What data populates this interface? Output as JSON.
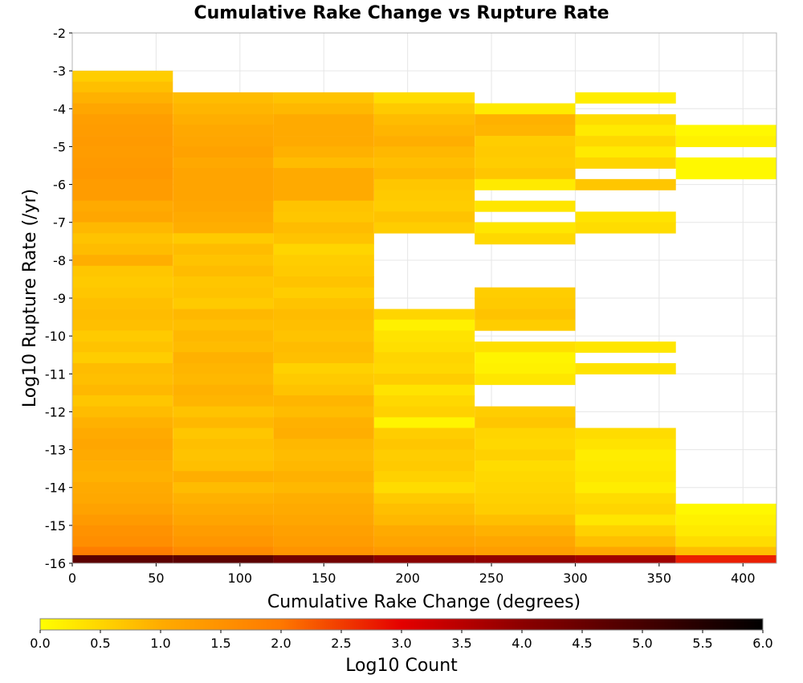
{
  "chart_data": {
    "type": "heatmap",
    "title": "Cumulative Rake Change vs Rupture Rate",
    "xlabel": "Cumulative Rake Change (degrees)",
    "ylabel": "Log10 Rupture Rate (/yr)",
    "xlim": [
      0,
      420
    ],
    "ylim": [
      -16,
      -2
    ],
    "xticks": [
      0,
      50,
      100,
      150,
      200,
      250,
      300,
      350,
      400
    ],
    "yticks": [
      -2,
      -3,
      -4,
      -5,
      -6,
      -7,
      -8,
      -9,
      -10,
      -11,
      -12,
      -13,
      -14,
      -15,
      -16
    ],
    "x_bin_width": 60,
    "y_bin_height": 0.286,
    "grid": true,
    "colorbar": {
      "label": "Log10 Count",
      "range": [
        0.0,
        6.0
      ],
      "ticks": [
        "0.0",
        "0.5",
        "1.0",
        "1.5",
        "2.0",
        "2.5",
        "3.0",
        "3.5",
        "4.0",
        "4.5",
        "5.0",
        "5.5",
        "6.0"
      ],
      "placement": "bottom",
      "colors": [
        "#ffff00",
        "#ffaa00",
        "#ff7a00",
        "#e40000",
        "#8a0000",
        "#000000"
      ]
    },
    "columns": [
      {
        "x_start": 0,
        "rows": [
          {
            "y": -3.14,
            "z": 0.7
          },
          {
            "y": -3.43,
            "z": 0.9
          },
          {
            "y": -3.71,
            "z": 1.1
          },
          {
            "y": -4.0,
            "z": 1.3
          },
          {
            "y": -4.29,
            "z": 1.5
          },
          {
            "y": -4.57,
            "z": 1.55
          },
          {
            "y": -4.86,
            "z": 1.6
          },
          {
            "y": -5.14,
            "z": 1.55
          },
          {
            "y": -5.43,
            "z": 1.6
          },
          {
            "y": -5.71,
            "z": 1.65
          },
          {
            "y": -6.0,
            "z": 1.55
          },
          {
            "y": -6.29,
            "z": 1.55
          },
          {
            "y": -6.57,
            "z": 1.2
          },
          {
            "y": -6.86,
            "z": 1.3
          },
          {
            "y": -7.14,
            "z": 1.0
          },
          {
            "y": -7.43,
            "z": 0.85
          },
          {
            "y": -7.71,
            "z": 0.95
          },
          {
            "y": -8.0,
            "z": 1.15
          },
          {
            "y": -8.29,
            "z": 0.8
          },
          {
            "y": -8.57,
            "z": 0.75
          },
          {
            "y": -8.86,
            "z": 0.8
          },
          {
            "y": -9.14,
            "z": 0.9
          },
          {
            "y": -9.43,
            "z": 0.95
          },
          {
            "y": -9.71,
            "z": 0.9
          },
          {
            "y": -10.0,
            "z": 0.75
          },
          {
            "y": -10.29,
            "z": 0.85
          },
          {
            "y": -10.57,
            "z": 0.7
          },
          {
            "y": -10.86,
            "z": 0.95
          },
          {
            "y": -11.14,
            "z": 0.9
          },
          {
            "y": -11.43,
            "z": 1.0
          },
          {
            "y": -11.71,
            "z": 0.8
          },
          {
            "y": -12.0,
            "z": 0.95
          },
          {
            "y": -12.29,
            "z": 1.1
          },
          {
            "y": -12.57,
            "z": 1.2
          },
          {
            "y": -12.86,
            "z": 1.3
          },
          {
            "y": -13.14,
            "z": 1.2
          },
          {
            "y": -13.43,
            "z": 1.15
          },
          {
            "y": -13.71,
            "z": 1.1
          },
          {
            "y": -14.0,
            "z": 1.2
          },
          {
            "y": -14.29,
            "z": 1.25
          },
          {
            "y": -14.57,
            "z": 1.4
          },
          {
            "y": -14.86,
            "z": 1.6
          },
          {
            "y": -15.14,
            "z": 1.8
          },
          {
            "y": -15.43,
            "z": 1.9
          },
          {
            "y": -15.71,
            "z": 2.3
          },
          {
            "y": -15.93,
            "z": 5.2
          }
        ]
      },
      {
        "x_start": 60,
        "rows": [
          {
            "y": -3.71,
            "z": 0.95
          },
          {
            "y": -4.0,
            "z": 1.05
          },
          {
            "y": -4.29,
            "z": 1.15
          },
          {
            "y": -4.57,
            "z": 1.25
          },
          {
            "y": -4.86,
            "z": 1.3
          },
          {
            "y": -5.14,
            "z": 1.4
          },
          {
            "y": -5.43,
            "z": 1.25
          },
          {
            "y": -5.71,
            "z": 1.35
          },
          {
            "y": -6.0,
            "z": 1.35
          },
          {
            "y": -6.29,
            "z": 1.35
          },
          {
            "y": -6.57,
            "z": 1.3
          },
          {
            "y": -6.86,
            "z": 1.2
          },
          {
            "y": -7.14,
            "z": 1.15
          },
          {
            "y": -7.43,
            "z": 0.75
          },
          {
            "y": -7.71,
            "z": 0.95
          },
          {
            "y": -8.0,
            "z": 0.85
          },
          {
            "y": -8.29,
            "z": 0.95
          },
          {
            "y": -8.57,
            "z": 0.8
          },
          {
            "y": -8.86,
            "z": 0.85
          },
          {
            "y": -9.14,
            "z": 0.75
          },
          {
            "y": -9.43,
            "z": 1.0
          },
          {
            "y": -9.71,
            "z": 0.9
          },
          {
            "y": -10.0,
            "z": 1.0
          },
          {
            "y": -10.29,
            "z": 0.95
          },
          {
            "y": -10.57,
            "z": 1.1
          },
          {
            "y": -10.86,
            "z": 1.05
          },
          {
            "y": -11.14,
            "z": 1.0
          },
          {
            "y": -11.43,
            "z": 1.1
          },
          {
            "y": -11.71,
            "z": 1.05
          },
          {
            "y": -12.0,
            "z": 0.85
          },
          {
            "y": -12.29,
            "z": 1.0
          },
          {
            "y": -12.57,
            "z": 0.8
          },
          {
            "y": -12.86,
            "z": 0.9
          },
          {
            "y": -13.14,
            "z": 0.85
          },
          {
            "y": -13.43,
            "z": 0.9
          },
          {
            "y": -13.71,
            "z": 1.15
          },
          {
            "y": -14.0,
            "z": 0.95
          },
          {
            "y": -14.29,
            "z": 1.1
          },
          {
            "y": -14.57,
            "z": 1.2
          },
          {
            "y": -14.86,
            "z": 1.35
          },
          {
            "y": -15.14,
            "z": 1.55
          },
          {
            "y": -15.43,
            "z": 1.7
          },
          {
            "y": -15.71,
            "z": 2.0
          },
          {
            "y": -15.93,
            "z": 5.2
          }
        ]
      },
      {
        "x_start": 120,
        "rows": [
          {
            "y": -3.71,
            "z": 0.85
          },
          {
            "y": -4.0,
            "z": 1.0
          },
          {
            "y": -4.29,
            "z": 1.2
          },
          {
            "y": -4.57,
            "z": 1.2
          },
          {
            "y": -4.86,
            "z": 1.2
          },
          {
            "y": -5.14,
            "z": 1.1
          },
          {
            "y": -5.43,
            "z": 0.95
          },
          {
            "y": -5.71,
            "z": 1.2
          },
          {
            "y": -6.0,
            "z": 1.2
          },
          {
            "y": -6.29,
            "z": 1.2
          },
          {
            "y": -6.57,
            "z": 0.85
          },
          {
            "y": -6.86,
            "z": 0.8
          },
          {
            "y": -7.14,
            "z": 0.95
          },
          {
            "y": -7.43,
            "z": 0.85
          },
          {
            "y": -7.71,
            "z": 0.6
          },
          {
            "y": -8.0,
            "z": 0.7
          },
          {
            "y": -8.29,
            "z": 0.75
          },
          {
            "y": -8.57,
            "z": 0.85
          },
          {
            "y": -8.86,
            "z": 0.7
          },
          {
            "y": -9.14,
            "z": 0.85
          },
          {
            "y": -9.43,
            "z": 0.95
          },
          {
            "y": -9.71,
            "z": 0.9
          },
          {
            "y": -10.0,
            "z": 0.85
          },
          {
            "y": -10.29,
            "z": 0.95
          },
          {
            "y": -10.57,
            "z": 0.9
          },
          {
            "y": -10.86,
            "z": 0.65
          },
          {
            "y": -11.14,
            "z": 0.75
          },
          {
            "y": -11.43,
            "z": 0.85
          },
          {
            "y": -11.71,
            "z": 1.05
          },
          {
            "y": -12.0,
            "z": 0.95
          },
          {
            "y": -12.29,
            "z": 1.1
          },
          {
            "y": -12.57,
            "z": 1.15
          },
          {
            "y": -12.86,
            "z": 1.0
          },
          {
            "y": -13.14,
            "z": 0.95
          },
          {
            "y": -13.43,
            "z": 1.0
          },
          {
            "y": -13.71,
            "z": 1.1
          },
          {
            "y": -14.0,
            "z": 1.0
          },
          {
            "y": -14.29,
            "z": 1.15
          },
          {
            "y": -14.57,
            "z": 1.2
          },
          {
            "y": -14.86,
            "z": 1.3
          },
          {
            "y": -15.14,
            "z": 1.45
          },
          {
            "y": -15.43,
            "z": 1.55
          },
          {
            "y": -15.71,
            "z": 1.75
          },
          {
            "y": -15.93,
            "z": 5.0
          }
        ]
      },
      {
        "x_start": 180,
        "rows": [
          {
            "y": -3.71,
            "z": 0.5
          },
          {
            "y": -4.0,
            "z": 0.75
          },
          {
            "y": -4.29,
            "z": 0.95
          },
          {
            "y": -4.57,
            "z": 1.05
          },
          {
            "y": -4.86,
            "z": 1.15
          },
          {
            "y": -5.14,
            "z": 1.0
          },
          {
            "y": -5.43,
            "z": 0.9
          },
          {
            "y": -5.71,
            "z": 1.0
          },
          {
            "y": -6.0,
            "z": 0.8
          },
          {
            "y": -6.29,
            "z": 0.75
          },
          {
            "y": -6.57,
            "z": 0.7
          },
          {
            "y": -6.86,
            "z": 0.85
          },
          {
            "y": -7.14,
            "z": 0.7
          },
          {
            "y": -9.43,
            "z": 0.6
          },
          {
            "y": -9.71,
            "z": 0.2
          },
          {
            "y": -10.0,
            "z": 0.4
          },
          {
            "y": -10.29,
            "z": 0.45
          },
          {
            "y": -10.57,
            "z": 0.6
          },
          {
            "y": -10.86,
            "z": 0.55
          },
          {
            "y": -11.14,
            "z": 0.7
          },
          {
            "y": -11.43,
            "z": 0.4
          },
          {
            "y": -11.71,
            "z": 0.55
          },
          {
            "y": -12.0,
            "z": 0.65
          },
          {
            "y": -12.29,
            "z": 0.15
          },
          {
            "y": -12.57,
            "z": 0.7
          },
          {
            "y": -12.86,
            "z": 0.8
          },
          {
            "y": -13.14,
            "z": 0.7
          },
          {
            "y": -13.43,
            "z": 0.75
          },
          {
            "y": -13.71,
            "z": 0.65
          },
          {
            "y": -14.0,
            "z": 0.5
          },
          {
            "y": -14.29,
            "z": 0.75
          },
          {
            "y": -14.57,
            "z": 0.9
          },
          {
            "y": -14.86,
            "z": 1.0
          },
          {
            "y": -15.14,
            "z": 1.2
          },
          {
            "y": -15.43,
            "z": 1.35
          },
          {
            "y": -15.71,
            "z": 1.6
          },
          {
            "y": -15.93,
            "z": 4.8
          }
        ]
      },
      {
        "x_start": 240,
        "rows": [
          {
            "y": -4.0,
            "z": 0.3
          },
          {
            "y": -4.29,
            "z": 1.1
          },
          {
            "y": -4.57,
            "z": 1.05
          },
          {
            "y": -4.86,
            "z": 0.7
          },
          {
            "y": -5.14,
            "z": 0.75
          },
          {
            "y": -5.43,
            "z": 0.7
          },
          {
            "y": -5.71,
            "z": 0.8
          },
          {
            "y": -6.0,
            "z": 0.3
          },
          {
            "y": -6.57,
            "z": 0.35
          },
          {
            "y": -7.14,
            "z": 0.35
          },
          {
            "y": -7.43,
            "z": 0.55
          },
          {
            "y": -8.86,
            "z": 0.7
          },
          {
            "y": -9.14,
            "z": 0.75
          },
          {
            "y": -9.43,
            "z": 0.85
          },
          {
            "y": -9.71,
            "z": 0.7
          },
          {
            "y": -10.29,
            "z": 0.45
          },
          {
            "y": -10.57,
            "z": 0.15
          },
          {
            "y": -10.86,
            "z": 0.2
          },
          {
            "y": -11.14,
            "z": 0.35
          },
          {
            "y": -12.0,
            "z": 0.7
          },
          {
            "y": -12.29,
            "z": 0.8
          },
          {
            "y": -12.57,
            "z": 0.6
          },
          {
            "y": -12.86,
            "z": 0.55
          },
          {
            "y": -13.14,
            "z": 0.65
          },
          {
            "y": -13.43,
            "z": 0.5
          },
          {
            "y": -13.71,
            "z": 0.55
          },
          {
            "y": -14.0,
            "z": 0.6
          },
          {
            "y": -14.29,
            "z": 0.65
          },
          {
            "y": -14.57,
            "z": 0.7
          },
          {
            "y": -14.86,
            "z": 0.9
          },
          {
            "y": -15.14,
            "z": 1.1
          },
          {
            "y": -15.43,
            "z": 1.3
          },
          {
            "y": -15.71,
            "z": 1.5
          },
          {
            "y": -15.93,
            "z": 4.7
          }
        ]
      },
      {
        "x_start": 300,
        "rows": [
          {
            "y": -3.71,
            "z": 0.25
          },
          {
            "y": -4.29,
            "z": 0.5
          },
          {
            "y": -4.57,
            "z": 0.3
          },
          {
            "y": -4.86,
            "z": 0.55
          },
          {
            "y": -5.14,
            "z": 0.3
          },
          {
            "y": -5.43,
            "z": 0.6
          },
          {
            "y": -6.0,
            "z": 0.8
          },
          {
            "y": -6.86,
            "z": 0.4
          },
          {
            "y": -7.14,
            "z": 0.5
          },
          {
            "y": -10.29,
            "z": 0.35
          },
          {
            "y": -10.86,
            "z": 0.4
          },
          {
            "y": -12.57,
            "z": 0.5
          },
          {
            "y": -12.86,
            "z": 0.4
          },
          {
            "y": -13.14,
            "z": 0.25
          },
          {
            "y": -13.43,
            "z": 0.3
          },
          {
            "y": -13.71,
            "z": 0.35
          },
          {
            "y": -14.0,
            "z": 0.25
          },
          {
            "y": -14.29,
            "z": 0.5
          },
          {
            "y": -14.57,
            "z": 0.6
          },
          {
            "y": -14.86,
            "z": 0.35
          },
          {
            "y": -15.14,
            "z": 0.65
          },
          {
            "y": -15.43,
            "z": 0.9
          },
          {
            "y": -15.71,
            "z": 1.3
          },
          {
            "y": -15.93,
            "z": 4.5
          }
        ]
      },
      {
        "x_start": 360,
        "rows": [
          {
            "y": -4.57,
            "z": 0.1
          },
          {
            "y": -4.86,
            "z": 0.2
          },
          {
            "y": -5.43,
            "z": 0.1
          },
          {
            "y": -5.71,
            "z": 0.1
          },
          {
            "y": -14.57,
            "z": 0.1
          },
          {
            "y": -14.86,
            "z": 0.2
          },
          {
            "y": -15.14,
            "z": 0.3
          },
          {
            "y": -15.43,
            "z": 0.5
          },
          {
            "y": -15.71,
            "z": 0.9
          },
          {
            "y": -15.93,
            "z": 3.3
          }
        ]
      }
    ]
  }
}
